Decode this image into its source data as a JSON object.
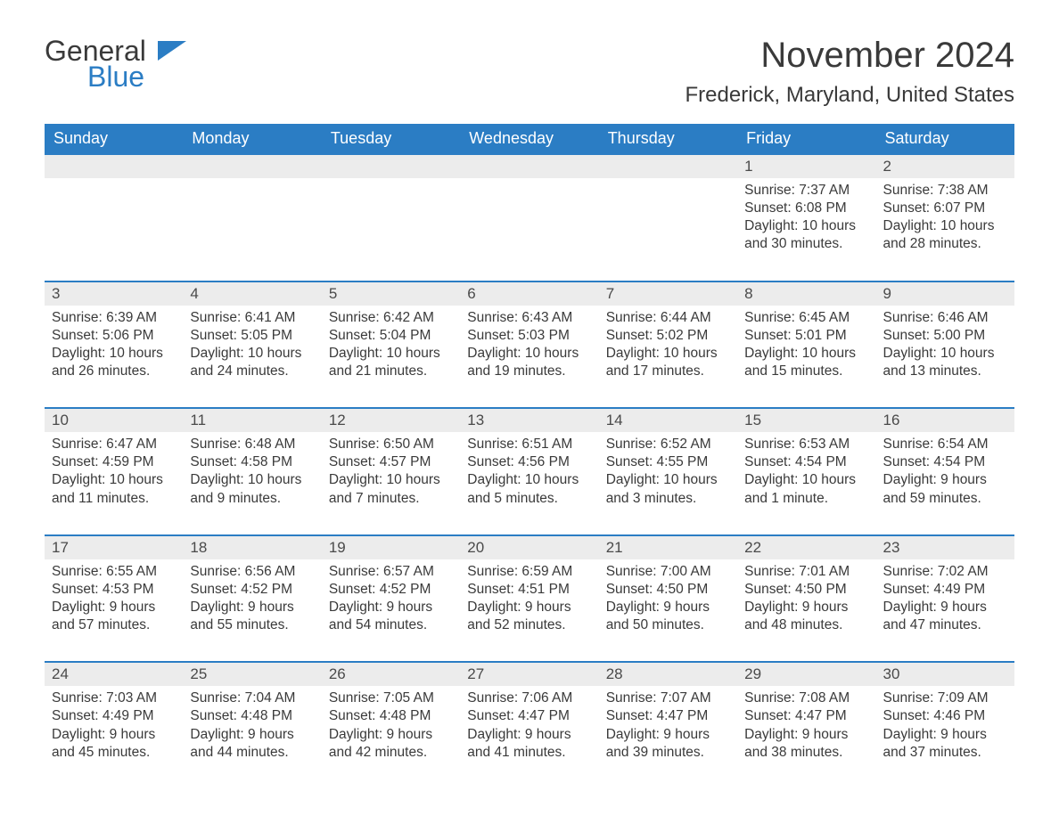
{
  "logo": {
    "text1": "General",
    "text2": "Blue"
  },
  "title": "November 2024",
  "location": "Frederick, Maryland, United States",
  "colors": {
    "header_bg": "#2b7dc4",
    "daynum_bg": "#ececec",
    "week_border": "#2b7dc4",
    "text": "#3a3a3a"
  },
  "daynames": [
    "Sunday",
    "Monday",
    "Tuesday",
    "Wednesday",
    "Thursday",
    "Friday",
    "Saturday"
  ],
  "weeks": [
    [
      null,
      null,
      null,
      null,
      null,
      {
        "n": "1",
        "sr": "7:37 AM",
        "ss": "6:08 PM",
        "dl": "10 hours and 30 minutes."
      },
      {
        "n": "2",
        "sr": "7:38 AM",
        "ss": "6:07 PM",
        "dl": "10 hours and 28 minutes."
      }
    ],
    [
      {
        "n": "3",
        "sr": "6:39 AM",
        "ss": "5:06 PM",
        "dl": "10 hours and 26 minutes."
      },
      {
        "n": "4",
        "sr": "6:41 AM",
        "ss": "5:05 PM",
        "dl": "10 hours and 24 minutes."
      },
      {
        "n": "5",
        "sr": "6:42 AM",
        "ss": "5:04 PM",
        "dl": "10 hours and 21 minutes."
      },
      {
        "n": "6",
        "sr": "6:43 AM",
        "ss": "5:03 PM",
        "dl": "10 hours and 19 minutes."
      },
      {
        "n": "7",
        "sr": "6:44 AM",
        "ss": "5:02 PM",
        "dl": "10 hours and 17 minutes."
      },
      {
        "n": "8",
        "sr": "6:45 AM",
        "ss": "5:01 PM",
        "dl": "10 hours and 15 minutes."
      },
      {
        "n": "9",
        "sr": "6:46 AM",
        "ss": "5:00 PM",
        "dl": "10 hours and 13 minutes."
      }
    ],
    [
      {
        "n": "10",
        "sr": "6:47 AM",
        "ss": "4:59 PM",
        "dl": "10 hours and 11 minutes."
      },
      {
        "n": "11",
        "sr": "6:48 AM",
        "ss": "4:58 PM",
        "dl": "10 hours and 9 minutes."
      },
      {
        "n": "12",
        "sr": "6:50 AM",
        "ss": "4:57 PM",
        "dl": "10 hours and 7 minutes."
      },
      {
        "n": "13",
        "sr": "6:51 AM",
        "ss": "4:56 PM",
        "dl": "10 hours and 5 minutes."
      },
      {
        "n": "14",
        "sr": "6:52 AM",
        "ss": "4:55 PM",
        "dl": "10 hours and 3 minutes."
      },
      {
        "n": "15",
        "sr": "6:53 AM",
        "ss": "4:54 PM",
        "dl": "10 hours and 1 minute."
      },
      {
        "n": "16",
        "sr": "6:54 AM",
        "ss": "4:54 PM",
        "dl": "9 hours and 59 minutes."
      }
    ],
    [
      {
        "n": "17",
        "sr": "6:55 AM",
        "ss": "4:53 PM",
        "dl": "9 hours and 57 minutes."
      },
      {
        "n": "18",
        "sr": "6:56 AM",
        "ss": "4:52 PM",
        "dl": "9 hours and 55 minutes."
      },
      {
        "n": "19",
        "sr": "6:57 AM",
        "ss": "4:52 PM",
        "dl": "9 hours and 54 minutes."
      },
      {
        "n": "20",
        "sr": "6:59 AM",
        "ss": "4:51 PM",
        "dl": "9 hours and 52 minutes."
      },
      {
        "n": "21",
        "sr": "7:00 AM",
        "ss": "4:50 PM",
        "dl": "9 hours and 50 minutes."
      },
      {
        "n": "22",
        "sr": "7:01 AM",
        "ss": "4:50 PM",
        "dl": "9 hours and 48 minutes."
      },
      {
        "n": "23",
        "sr": "7:02 AM",
        "ss": "4:49 PM",
        "dl": "9 hours and 47 minutes."
      }
    ],
    [
      {
        "n": "24",
        "sr": "7:03 AM",
        "ss": "4:49 PM",
        "dl": "9 hours and 45 minutes."
      },
      {
        "n": "25",
        "sr": "7:04 AM",
        "ss": "4:48 PM",
        "dl": "9 hours and 44 minutes."
      },
      {
        "n": "26",
        "sr": "7:05 AM",
        "ss": "4:48 PM",
        "dl": "9 hours and 42 minutes."
      },
      {
        "n": "27",
        "sr": "7:06 AM",
        "ss": "4:47 PM",
        "dl": "9 hours and 41 minutes."
      },
      {
        "n": "28",
        "sr": "7:07 AM",
        "ss": "4:47 PM",
        "dl": "9 hours and 39 minutes."
      },
      {
        "n": "29",
        "sr": "7:08 AM",
        "ss": "4:47 PM",
        "dl": "9 hours and 38 minutes."
      },
      {
        "n": "30",
        "sr": "7:09 AM",
        "ss": "4:46 PM",
        "dl": "9 hours and 37 minutes."
      }
    ]
  ],
  "labels": {
    "sunrise": "Sunrise: ",
    "sunset": "Sunset: ",
    "daylight": "Daylight: "
  }
}
